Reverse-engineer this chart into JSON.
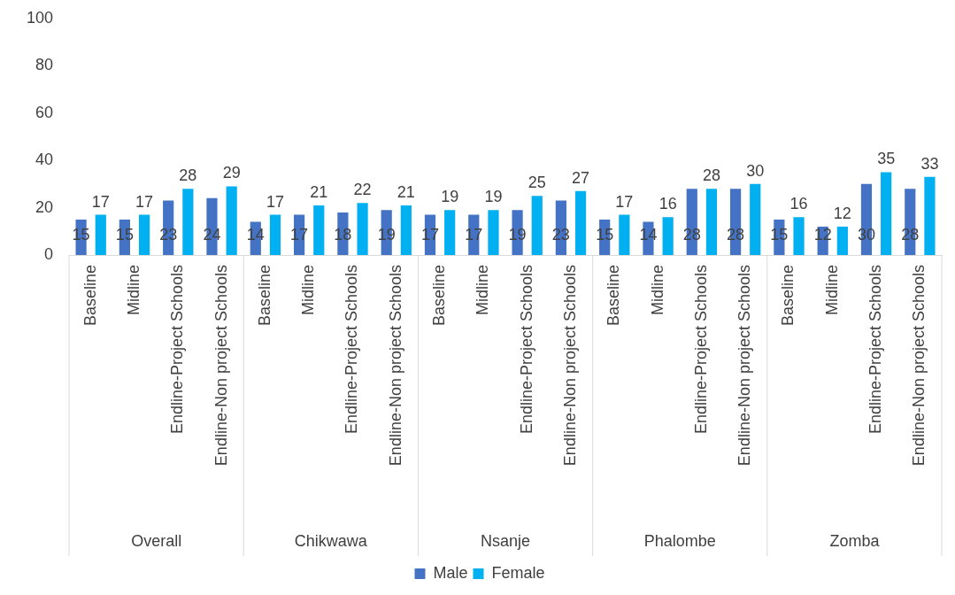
{
  "chart_data": {
    "type": "bar",
    "categories": [
      "Baseline",
      "Midline",
      "Endline-Project Schools",
      "Endline-Non project Schools",
      "Baseline",
      "Midline",
      "Endline-Project Schools",
      "Endline-Non project Schools",
      "Baseline",
      "Midline",
      "Endline-Project Schools",
      "Endline-Non project Schools",
      "Baseline",
      "Midline",
      "Endline-Project Schools",
      "Endline-Non project Schools",
      "Baseline",
      "Midline",
      "Endline-Project Schools",
      "Endline-Non project Schools"
    ],
    "series": [
      {
        "name": "Male",
        "color": "#4472c4",
        "values": [
          15,
          15,
          23,
          24,
          14,
          17,
          18,
          19,
          17,
          17,
          19,
          23,
          15,
          14,
          28,
          28,
          15,
          12,
          30,
          28
        ]
      },
      {
        "name": "Female",
        "color": "#00b0f0",
        "values": [
          17,
          17,
          28,
          29,
          17,
          21,
          22,
          21,
          19,
          19,
          25,
          27,
          17,
          16,
          28,
          30,
          16,
          12,
          35,
          33
        ]
      }
    ],
    "annotations": [
      "Overall",
      "Chikwawa",
      "Nsanje",
      "Phalombe",
      "Zomba"
    ],
    "ylim": [
      0,
      100
    ],
    "yticks": [
      0,
      20,
      40,
      60,
      80,
      100
    ],
    "grid": false,
    "legend": "bottom",
    "data_labels": true
  }
}
